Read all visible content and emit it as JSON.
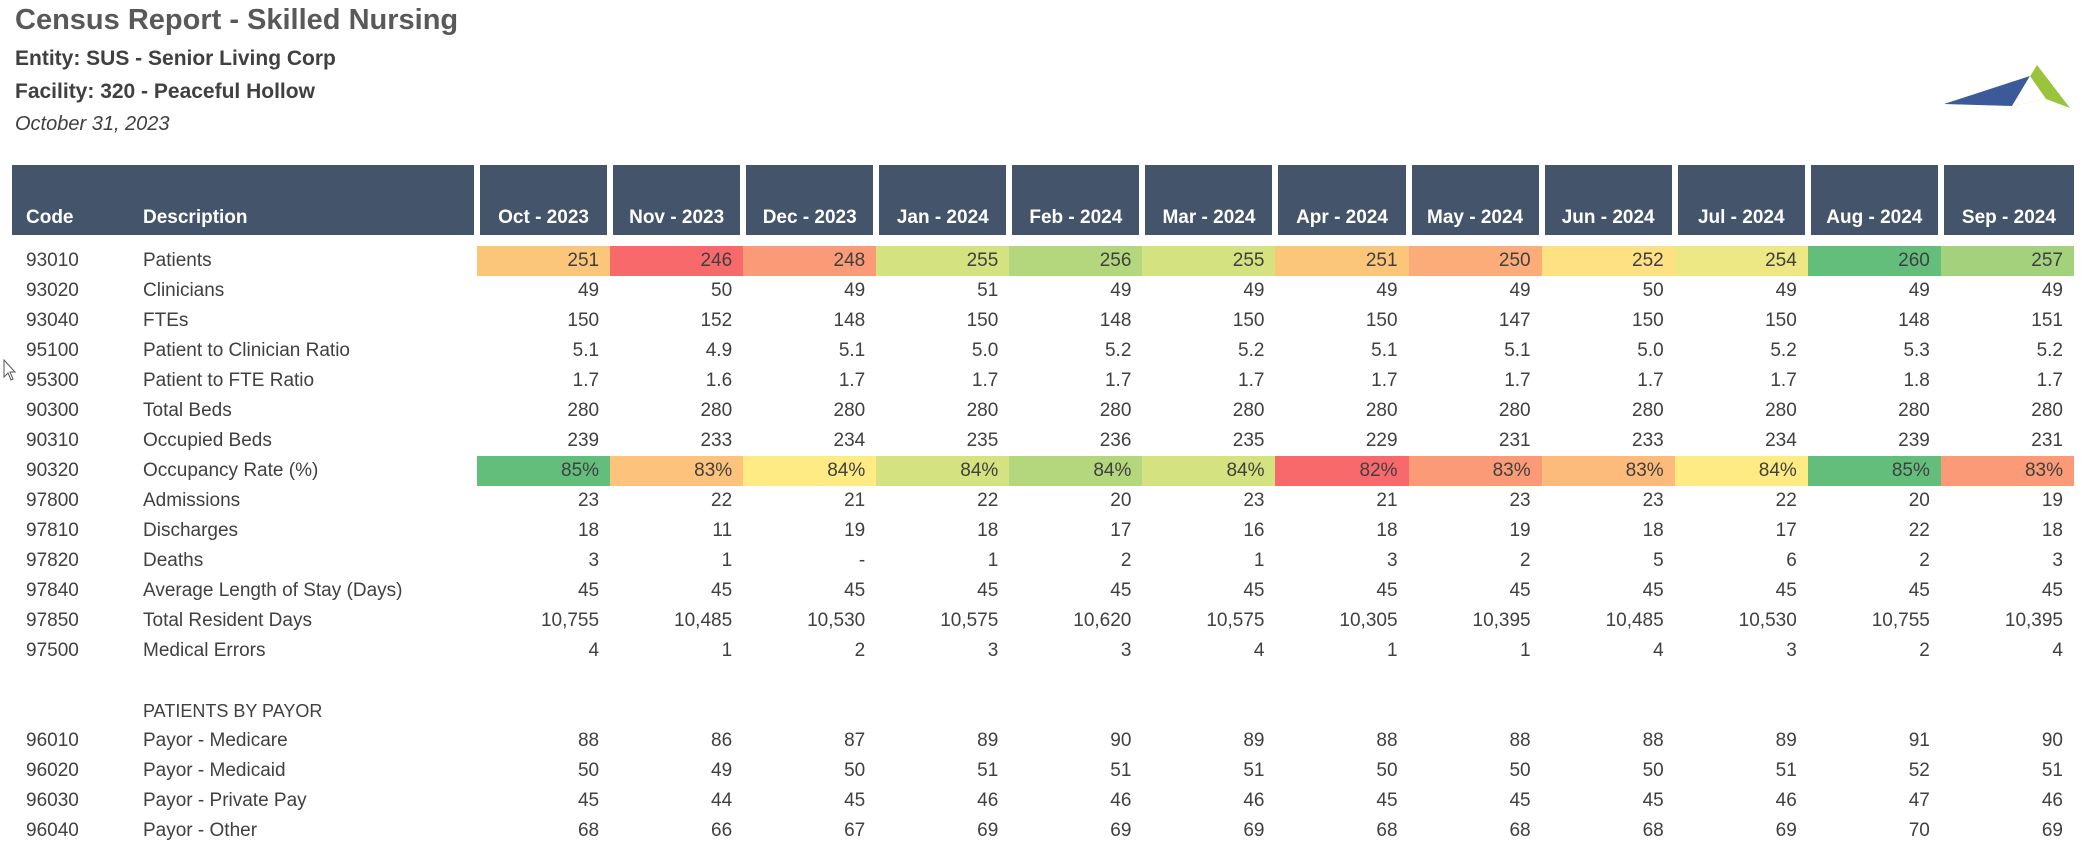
{
  "report": {
    "title": "Census Report - Skilled Nursing",
    "entity": "Entity: SUS - Senior Living Corp",
    "facility": "Facility: 320 - Peaceful Hollow",
    "date": "October 31, 2023"
  },
  "columns": {
    "code": "Code",
    "description": "Description",
    "months": [
      "Oct - 2023",
      "Nov - 2023",
      "Dec - 2023",
      "Jan - 2024",
      "Feb - 2024",
      "Mar - 2024",
      "Apr - 2024",
      "May - 2024",
      "Jun - 2024",
      "Jul - 2024",
      "Aug - 2024",
      "Sep - 2024"
    ]
  },
  "colors": {
    "header_bg": "#44546a",
    "patients_row": [
      "#fcc67a",
      "#f8696b",
      "#fb9a76",
      "#d4e280",
      "#b4d67c",
      "#d4e280",
      "#fcc67a",
      "#fcac78",
      "#fee182",
      "#ede784",
      "#63be7b",
      "#a3d17c"
    ],
    "occupancy_row": [
      "#63be7b",
      "#fdc27c",
      "#ffeb84",
      "#d4e280",
      "#b4d67c",
      "#d4e280",
      "#f8696b",
      "#fb9a76",
      "#fcbb7b",
      "#ffeb84",
      "#63be7b",
      "#fb9a76"
    ]
  },
  "rows": [
    {
      "code": "93010",
      "desc": "Patients",
      "values": [
        "251",
        "246",
        "248",
        "255",
        "256",
        "255",
        "251",
        "250",
        "252",
        "254",
        "260",
        "257"
      ],
      "heat": "patients_row"
    },
    {
      "code": "93020",
      "desc": "Clinicians",
      "values": [
        "49",
        "50",
        "49",
        "51",
        "49",
        "49",
        "49",
        "49",
        "50",
        "49",
        "49",
        "49"
      ]
    },
    {
      "code": "93040",
      "desc": "FTEs",
      "values": [
        "150",
        "152",
        "148",
        "150",
        "148",
        "150",
        "150",
        "147",
        "150",
        "150",
        "148",
        "151"
      ]
    },
    {
      "code": "95100",
      "desc": "Patient to Clinician Ratio",
      "values": [
        "5.1",
        "4.9",
        "5.1",
        "5.0",
        "5.2",
        "5.2",
        "5.1",
        "5.1",
        "5.0",
        "5.2",
        "5.3",
        "5.2"
      ]
    },
    {
      "code": "95300",
      "desc": "Patient to FTE Ratio",
      "values": [
        "1.7",
        "1.6",
        "1.7",
        "1.7",
        "1.7",
        "1.7",
        "1.7",
        "1.7",
        "1.7",
        "1.7",
        "1.8",
        "1.7"
      ]
    },
    {
      "code": "90300",
      "desc": "Total Beds",
      "values": [
        "280",
        "280",
        "280",
        "280",
        "280",
        "280",
        "280",
        "280",
        "280",
        "280",
        "280",
        "280"
      ]
    },
    {
      "code": "90310",
      "desc": "Occupied Beds",
      "values": [
        "239",
        "233",
        "234",
        "235",
        "236",
        "235",
        "229",
        "231",
        "233",
        "234",
        "239",
        "231"
      ]
    },
    {
      "code": "90320",
      "desc": "Occupancy Rate (%)",
      "values": [
        "85%",
        "83%",
        "84%",
        "84%",
        "84%",
        "84%",
        "82%",
        "83%",
        "83%",
        "84%",
        "85%",
        "83%"
      ],
      "heat": "occupancy_row"
    },
    {
      "code": "97800",
      "desc": "Admissions",
      "values": [
        "23",
        "22",
        "21",
        "22",
        "20",
        "23",
        "21",
        "23",
        "23",
        "22",
        "20",
        "19"
      ]
    },
    {
      "code": "97810",
      "desc": "Discharges",
      "values": [
        "18",
        "11",
        "19",
        "18",
        "17",
        "16",
        "18",
        "19",
        "18",
        "17",
        "22",
        "18"
      ]
    },
    {
      "code": "97820",
      "desc": "Deaths",
      "values": [
        "3",
        "1",
        "-",
        "1",
        "2",
        "1",
        "3",
        "2",
        "5",
        "6",
        "2",
        "3"
      ]
    },
    {
      "code": "97840",
      "desc": "Average Length of Stay (Days)",
      "values": [
        "45",
        "45",
        "45",
        "45",
        "45",
        "45",
        "45",
        "45",
        "45",
        "45",
        "45",
        "45"
      ]
    },
    {
      "code": "97850",
      "desc": "Total Resident Days",
      "values": [
        "10,755",
        "10,485",
        "10,530",
        "10,575",
        "10,620",
        "10,575",
        "10,305",
        "10,395",
        "10,485",
        "10,530",
        "10,755",
        "10,395"
      ]
    },
    {
      "code": "97500",
      "desc": "Medical Errors",
      "values": [
        "4",
        "1",
        "2",
        "3",
        "3",
        "4",
        "1",
        "1",
        "4",
        "3",
        "2",
        "4"
      ]
    }
  ],
  "payor_section": {
    "label": "PATIENTS BY PAYOR",
    "rows": [
      {
        "code": "96010",
        "desc": "Payor - Medicare",
        "values": [
          "88",
          "86",
          "87",
          "89",
          "90",
          "89",
          "88",
          "88",
          "88",
          "89",
          "91",
          "90"
        ]
      },
      {
        "code": "96020",
        "desc": "Payor - Medicaid",
        "values": [
          "50",
          "49",
          "50",
          "51",
          "51",
          "51",
          "50",
          "50",
          "50",
          "51",
          "52",
          "51"
        ]
      },
      {
        "code": "96030",
        "desc": "Payor - Private Pay",
        "values": [
          "45",
          "44",
          "45",
          "46",
          "46",
          "46",
          "45",
          "45",
          "45",
          "46",
          "47",
          "46"
        ]
      },
      {
        "code": "96040",
        "desc": "Payor - Other",
        "values": [
          "68",
          "66",
          "67",
          "69",
          "69",
          "69",
          "68",
          "68",
          "68",
          "69",
          "70",
          "69"
        ]
      }
    ]
  },
  "icons": {
    "logo": "company-logo-triangles",
    "cursor": "mouse-pointer-icon"
  }
}
